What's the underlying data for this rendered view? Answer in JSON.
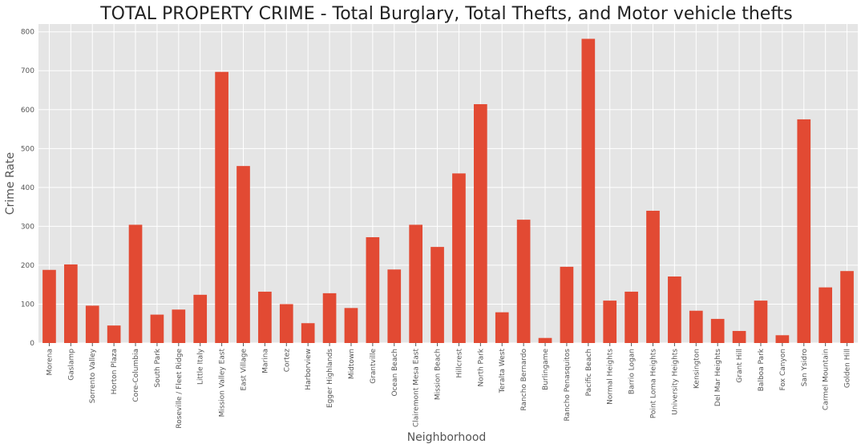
{
  "chart_data": {
    "type": "bar",
    "title": "TOTAL PROPERTY CRIME - Total Burglary, Total Thefts, and Motor vehicle thefts",
    "xlabel": "Neighborhood",
    "ylabel": "Crime Rate",
    "ylim": [
      0,
      820
    ],
    "yticks": [
      0,
      100,
      200,
      300,
      400,
      500,
      600,
      700,
      800
    ],
    "grid": true,
    "categories": [
      "Morena",
      "Gaslamp",
      "Sorrento Valley",
      "Horton Plaza",
      "Core-Columbia",
      "South Park",
      "Roseville / Fleet Ridge",
      "Little Italy",
      "Mission Valley East",
      "East Village",
      "Marina",
      "Cortez",
      "Harborview",
      "Egger Highlands",
      "Midtown",
      "Grantville",
      "Ocean Beach",
      "Clairemont Mesa East",
      "Mission Beach",
      "Hillcrest",
      "North Park",
      "Teralta West",
      "Rancho Bernardo",
      "Burlingame",
      "Rancho Penasquitos",
      "Pacific Beach",
      "Normal Heights",
      "Barrio Logan",
      "Point Loma Heights",
      "University Heights",
      "Kensington",
      "Del Mar Heights",
      "Grant Hill",
      "Balboa Park",
      "Fox Canyon",
      "San Ysidro",
      "Carmel Mountain",
      "Golden Hill"
    ],
    "values": [
      188,
      202,
      96,
      45,
      304,
      73,
      86,
      124,
      697,
      455,
      132,
      100,
      51,
      128,
      90,
      272,
      189,
      304,
      247,
      436,
      614,
      79,
      317,
      13,
      196,
      782,
      109,
      132,
      340,
      171,
      83,
      62,
      31,
      109,
      20,
      575,
      143,
      185
    ],
    "colors": {
      "bar": "#E24A33",
      "background": "#E5E5E5",
      "grid": "#FFFFFF"
    }
  }
}
